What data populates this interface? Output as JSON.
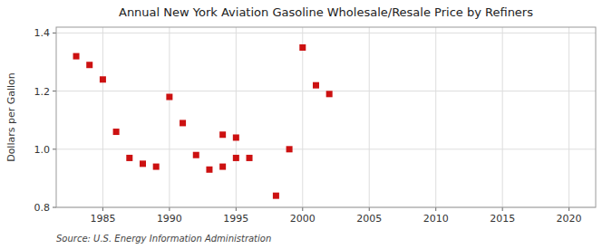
{
  "chart_data": {
    "type": "scatter",
    "title": "Annual New York Aviation Gasoline Wholesale/Resale Price by Refiners",
    "ylabel": "Dollars per Gallon",
    "source": "Source: U.S. Energy Information Administration",
    "x": [
      1983,
      1984,
      1985,
      1986,
      1987,
      1988,
      1989,
      1990,
      1991,
      1992,
      1993,
      1994,
      1995,
      1994,
      1995,
      1996,
      1998,
      1999,
      2000,
      2001,
      2002
    ],
    "values": [
      1.32,
      1.29,
      1.24,
      1.06,
      0.97,
      0.95,
      0.94,
      1.18,
      1.09,
      0.98,
      0.93,
      0.94,
      0.97,
      1.05,
      1.04,
      0.97,
      0.84,
      1.0,
      1.35,
      1.22,
      1.19
    ],
    "color": "#cc1111",
    "marker": "square",
    "xlim": [
      1981.5,
      2022
    ],
    "ylim": [
      0.8,
      1.42
    ],
    "xticks": [
      1985,
      1990,
      1995,
      2000,
      2005,
      2010,
      2015,
      2020
    ],
    "yticks": [
      0.8,
      {
        "value": 1.0,
        "label": "1.0"
      },
      1.2,
      1.4
    ],
    "grid": true
  }
}
